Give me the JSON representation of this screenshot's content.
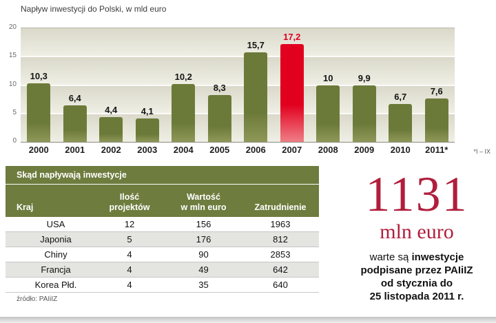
{
  "chart": {
    "title": "Napływ inwestycji do Polski, w mld euro",
    "footnote": "*I – IX"
  },
  "chart_data": {
    "type": "bar",
    "title": "Napływ inwestycji do Polski, w mld euro",
    "categories": [
      "2000",
      "2001",
      "2002",
      "2003",
      "2004",
      "2005",
      "2006",
      "2007",
      "2008",
      "2009",
      "2010",
      "2011*"
    ],
    "values": [
      10.3,
      6.4,
      4.4,
      4.1,
      10.2,
      8.3,
      15.7,
      17.2,
      10,
      9.9,
      6.7,
      7.6
    ],
    "labels": [
      "10,3",
      "6,4",
      "4,4",
      "4,1",
      "10,2",
      "8,3",
      "15,7",
      "17,2",
      "10",
      "9,9",
      "6,7",
      "7,6"
    ],
    "highlight_index": 7,
    "xlabel": "",
    "ylabel": "",
    "ylim": [
      0,
      20
    ],
    "yticks": [
      0,
      5,
      10,
      15,
      20
    ],
    "grid": "horizontal",
    "legend": "none",
    "footnote": "*I – IX"
  },
  "table": {
    "title": "Skąd  napływają inwestycje",
    "columns": [
      "Kraj",
      "Ilość\nprojektów",
      "Wartość\nw mln euro",
      "Zatrudnienie"
    ],
    "rows": [
      [
        "USA",
        "12",
        "156",
        "1963"
      ],
      [
        "Japonia",
        "5",
        "176",
        "812"
      ],
      [
        "Chiny",
        "4",
        "90",
        "2853"
      ],
      [
        "Francja",
        "4",
        "49",
        "642"
      ],
      [
        "Korea Płd.",
        "4",
        "35",
        "640"
      ]
    ],
    "source": "źródło: PAIiIZ"
  },
  "callout": {
    "number": "1131",
    "unit": "mln euro",
    "line1_normal": "warte są ",
    "line1_bold": "inwestycje",
    "line2": "podpisane przez PAIiIZ",
    "line3": "od stycznia do",
    "line4": "25 listopada 2011 r."
  },
  "colors": {
    "bar": "#6c7a39",
    "bar_highlight": "#e2001f",
    "accent_red": "#b01e3c",
    "table_header": "#6e7c3e"
  }
}
